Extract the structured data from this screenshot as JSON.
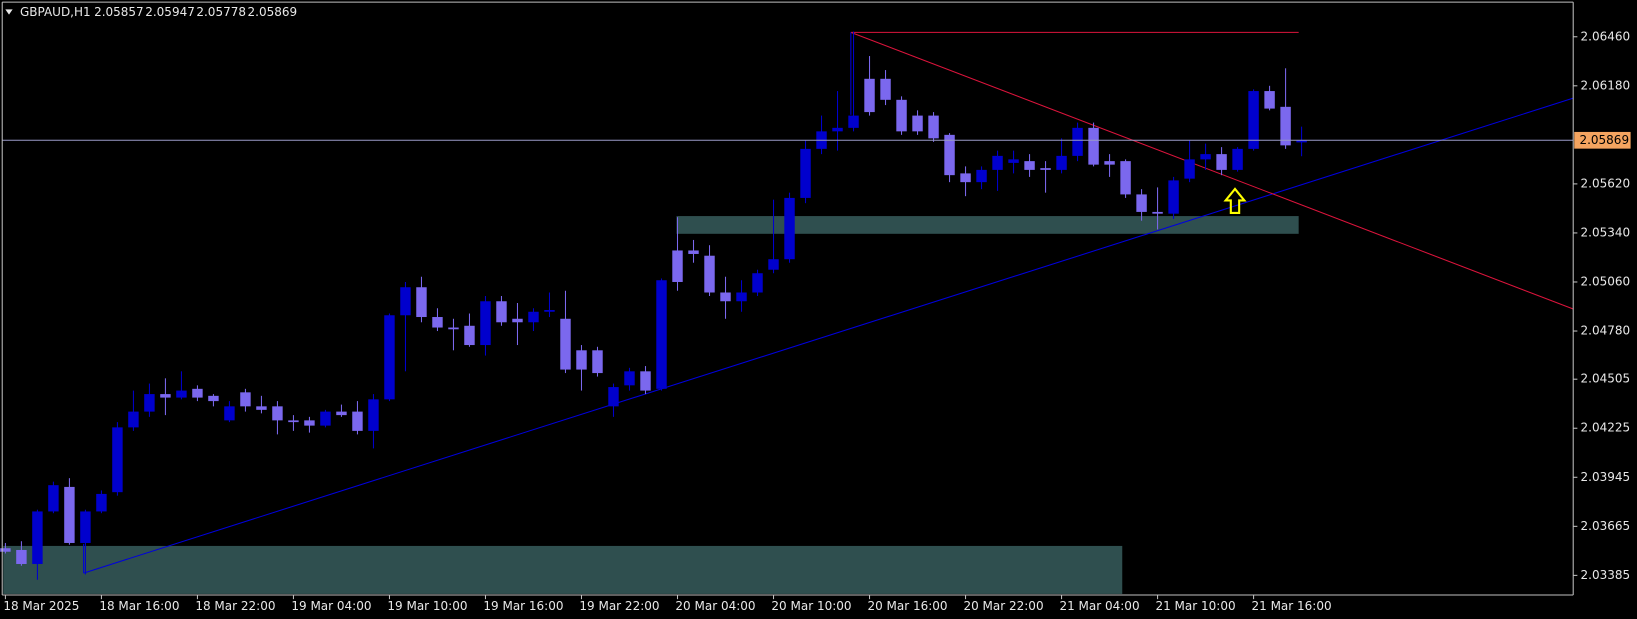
{
  "chart_data": {
    "type": "candlestick",
    "symbol": "GBPAUD,H1",
    "categories": [
      "18 Mar 2025",
      null,
      null,
      null,
      null,
      null,
      "18 Mar 16:00",
      null,
      null,
      null,
      null,
      null,
      "18 Mar 22:00",
      null,
      null,
      null,
      null,
      null,
      "19 Mar 04:00",
      null,
      null,
      null,
      null,
      null,
      "19 Mar 10:00",
      null,
      null,
      null,
      null,
      null,
      "19 Mar 16:00",
      null,
      null,
      null,
      null,
      null,
      "19 Mar 22:00",
      null,
      null,
      null,
      null,
      null,
      "20 Mar 04:00",
      null,
      null,
      null,
      null,
      null,
      "20 Mar 10:00",
      null,
      null,
      null,
      null,
      null,
      "20 Mar 16:00",
      null,
      null,
      null,
      null,
      null,
      "20 Mar 22:00",
      null,
      null,
      null,
      null,
      null,
      "21 Mar 04:00",
      null,
      null,
      null,
      null,
      null,
      "21 Mar 10:00",
      null,
      null,
      null,
      null,
      null,
      "21 Mar 16:00",
      null,
      null,
      null
    ],
    "open": [
      2.0354,
      2.0353,
      2.0345,
      2.0375,
      2.0389,
      2.0357,
      2.0375,
      2.0386,
      2.0423,
      2.0432,
      2.0442,
      2.044,
      2.0445,
      2.0441,
      2.0427,
      2.0443,
      2.0435,
      2.0435,
      2.0427,
      2.0427,
      2.0424,
      2.0432,
      2.0432,
      2.0421,
      2.0439,
      2.0487,
      2.0503,
      2.0486,
      2.048,
      2.0481,
      2.047,
      2.0495,
      2.0485,
      2.0483,
      2.0489,
      2.0485,
      2.0467,
      2.0467,
      2.0435,
      2.0447,
      2.0455,
      2.0445,
      2.0524,
      2.0524,
      2.0521,
      2.05,
      2.0495,
      2.05,
      2.0513,
      2.0519,
      2.0554,
      2.0582,
      2.0592,
      2.0594,
      2.0622,
      2.0622,
      2.061,
      2.0601,
      2.0601,
      2.059,
      2.0568,
      2.0563,
      2.057,
      2.0574,
      2.0575,
      2.0571,
      2.057,
      2.0578,
      2.0594,
      2.0575,
      2.0575,
      2.0556,
      2.0546,
      2.0545,
      2.0565,
      2.0576,
      2.0579,
      2.057,
      2.0582,
      2.0615,
      2.0606,
      2.05857
    ],
    "high": [
      2.0357,
      2.0358,
      2.0376,
      2.0392,
      2.0394,
      2.0376,
      2.0387,
      2.0426,
      2.0444,
      2.0448,
      2.0451,
      2.0455,
      2.0447,
      2.0442,
      2.0438,
      2.0445,
      2.0441,
      2.0438,
      2.043,
      2.0429,
      2.0433,
      2.0436,
      2.0438,
      2.0442,
      2.0488,
      2.0506,
      2.0509,
      2.0491,
      2.0485,
      2.0488,
      2.0498,
      2.0498,
      2.0494,
      2.0491,
      2.05,
      2.0501,
      2.047,
      2.0469,
      2.0448,
      2.0457,
      2.0458,
      2.0508,
      2.0543,
      2.053,
      2.0527,
      2.0509,
      2.0507,
      2.0513,
      2.0553,
      2.0557,
      2.0587,
      2.0601,
      2.0615,
      2.0649,
      2.0635,
      2.0627,
      2.0612,
      2.0604,
      2.0603,
      2.0591,
      2.0572,
      2.0572,
      2.0581,
      2.0581,
      2.0579,
      2.0575,
      2.0588,
      2.0597,
      2.0597,
      2.0579,
      2.0576,
      2.0559,
      2.056,
      2.0566,
      2.0587,
      2.0585,
      2.0583,
      2.0583,
      2.0616,
      2.0618,
      2.0628,
      2.05947
    ],
    "low": [
      2.0351,
      2.0344,
      2.0336,
      2.0374,
      2.0356,
      2.0339,
      2.0374,
      2.0384,
      2.0421,
      2.0429,
      2.043,
      2.0439,
      2.0438,
      2.0435,
      2.0426,
      2.0432,
      2.0431,
      2.0419,
      2.0421,
      2.042,
      2.0423,
      2.0429,
      2.0419,
      2.0411,
      2.0438,
      2.0455,
      2.0483,
      2.0478,
      2.0467,
      2.0469,
      2.0464,
      2.0481,
      2.047,
      2.0478,
      2.0486,
      2.0454,
      2.0444,
      2.0452,
      2.0429,
      2.0444,
      2.0442,
      2.0444,
      2.0501,
      2.0517,
      2.0498,
      2.0485,
      2.0489,
      2.0498,
      2.0511,
      2.0517,
      2.0551,
      2.0579,
      2.0581,
      2.0592,
      2.0601,
      2.0607,
      2.059,
      2.059,
      2.0586,
      2.0563,
      2.0555,
      2.0559,
      2.0558,
      2.0568,
      2.0566,
      2.0557,
      2.0568,
      2.0575,
      2.0572,
      2.0566,
      2.0554,
      2.0541,
      2.0536,
      2.0542,
      2.0563,
      2.057,
      2.0567,
      2.0569,
      2.0581,
      2.0604,
      2.0582,
      2.05778
    ],
    "close": [
      2.0352,
      2.0345,
      2.0375,
      2.039,
      2.0357,
      2.0375,
      2.0385,
      2.0423,
      2.0432,
      2.0442,
      2.044,
      2.0444,
      2.044,
      2.0438,
      2.0435,
      2.0435,
      2.0433,
      2.0427,
      2.0426,
      2.0424,
      2.0432,
      2.043,
      2.0421,
      2.0439,
      2.0487,
      2.0503,
      2.0486,
      2.048,
      2.0479,
      2.047,
      2.0495,
      2.0483,
      2.0483,
      2.0489,
      2.049,
      2.0456,
      2.0456,
      2.0454,
      2.0446,
      2.0455,
      2.0444,
      2.0507,
      2.0506,
      2.0522,
      2.05,
      2.0495,
      2.05,
      2.0511,
      2.0519,
      2.0554,
      2.0582,
      2.0592,
      2.0594,
      2.0601,
      2.0603,
      2.061,
      2.0592,
      2.0592,
      2.0588,
      2.0567,
      2.0563,
      2.057,
      2.0578,
      2.0576,
      2.057,
      2.057,
      2.0578,
      2.0594,
      2.0573,
      2.0573,
      2.0556,
      2.0546,
      2.0545,
      2.0564,
      2.0576,
      2.0579,
      2.057,
      2.0582,
      2.0615,
      2.0605,
      2.0584,
      2.05869
    ],
    "bull_color": "#0000cd",
    "bear_color": "#7b68ee",
    "ylim": [
      2.03273,
      2.06658
    ],
    "yticks": [
      {
        "value": 2.0646,
        "label": "2.06460"
      },
      {
        "value": 2.0618,
        "label": "2.06180"
      },
      {
        "value": 2.0562,
        "label": "2.05620"
      },
      {
        "value": 2.0534,
        "label": "2.05340"
      },
      {
        "value": 2.0506,
        "label": "2.05060"
      },
      {
        "value": 2.0478,
        "label": "2.04780"
      },
      2.04505,
      2.04225,
      2.03945,
      2.03665,
      2.03385
    ]
  }
}
